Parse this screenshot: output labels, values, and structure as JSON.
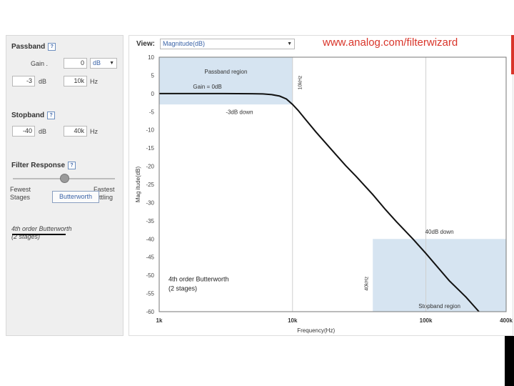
{
  "left_panel": {
    "passband": {
      "title": "Passband",
      "help": "?",
      "gain_label": "Gain .",
      "gain_value": "0",
      "gain_unit": "dB",
      "atten_value": "-3",
      "atten_unit": "dB",
      "freq_value": "10k",
      "freq_unit": "Hz"
    },
    "stopband": {
      "title": "Stopband",
      "help": "?",
      "atten_value": "-40",
      "atten_unit": "dB",
      "freq_value": "40k",
      "freq_unit": "Hz"
    },
    "filter_response": {
      "title": "Filter Response",
      "help": "?",
      "left_label_1": "Fewest",
      "left_label_2": "Stages",
      "right_label_1": "Fastest",
      "right_label_2": "Settling",
      "right_label_2_visible": "ttling",
      "selected": "Butterworth",
      "slider_value": 0.5
    },
    "summary": {
      "line1": "4th order Butterworth",
      "line2": "(2 stages)"
    }
  },
  "view": {
    "label": "View:",
    "selected": "Magnitude(dB)"
  },
  "url": "www.analog.com/filterwizard",
  "colors": {
    "url_red": "#d9352a",
    "region_blue": "#d6e4f1",
    "curve": "#111111",
    "link_blue": "#3b64a8"
  },
  "chart_data": {
    "type": "line",
    "xscale": "log",
    "xlim": [
      1000,
      400000
    ],
    "ylim": [
      -60,
      10
    ],
    "xlabel": "Frequency(Hz)",
    "ylabel": "Magnitude(dB)",
    "ylabel_visible": "Mag itude(dB)",
    "x_ticks": [
      {
        "value": 1000,
        "label": "1k"
      },
      {
        "value": 10000,
        "label": "10k"
      },
      {
        "value": 100000,
        "label": "100k"
      },
      {
        "value": 400000,
        "label": "400k"
      }
    ],
    "y_ticks": [
      10,
      5,
      0,
      -5,
      -10,
      -15,
      -20,
      -25,
      -30,
      -35,
      -40,
      -45,
      -50,
      -55,
      -60
    ],
    "series": [
      {
        "points": [
          [
            1000,
            0
          ],
          [
            3000,
            0
          ],
          [
            5000,
            -0.05
          ],
          [
            6000,
            -0.1
          ],
          [
            7000,
            -0.3
          ],
          [
            8000,
            -0.7
          ],
          [
            9000,
            -1.5
          ],
          [
            10000,
            -3
          ],
          [
            11000,
            -4.6
          ],
          [
            12500,
            -7.1
          ],
          [
            15000,
            -10.6
          ],
          [
            20000,
            -15.8
          ],
          [
            25000,
            -19.8
          ],
          [
            30000,
            -22.8
          ],
          [
            40000,
            -27.8
          ],
          [
            50000,
            -32
          ],
          [
            60000,
            -35.2
          ],
          [
            80000,
            -40
          ],
          [
            100000,
            -44
          ],
          [
            150000,
            -51.5
          ],
          [
            200000,
            -56
          ],
          [
            250000,
            -60
          ]
        ]
      }
    ],
    "regions": [
      {
        "name": "Passband region",
        "x": [
          1000,
          10000
        ],
        "y": [
          -3,
          10
        ]
      },
      {
        "name": "Stopband region",
        "x": [
          40000,
          400000
        ],
        "y": [
          -60,
          -40
        ]
      }
    ],
    "annotations": {
      "gain": "Gain = 0dB",
      "pass_down": "-3dB down",
      "pass_freq": "10kHz",
      "stop_down": "40dB down",
      "stop_freq": "40kHz",
      "order_line1": "4th order Butterworth",
      "order_line2": "(2 stages)"
    }
  }
}
